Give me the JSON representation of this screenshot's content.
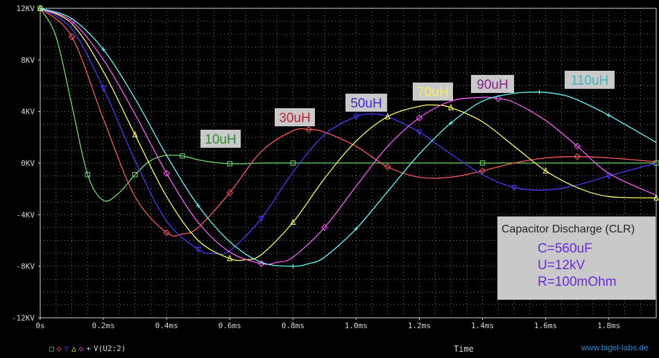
{
  "chart_data": {
    "type": "line",
    "xlabel": "Time",
    "xlim": [
      0,
      1.95
    ],
    "ylim": [
      -12,
      12
    ],
    "x_ticks": [
      "0s",
      "0.2ms",
      "0.4ms",
      "0.6ms",
      "0.8ms",
      "1.0ms",
      "1.2ms",
      "1.4ms",
      "1.6ms",
      "1.8ms"
    ],
    "y_ticks": [
      "12KV",
      "8KV",
      "4KV",
      "0KV",
      "-4KV",
      "-8KV",
      "-12KV"
    ],
    "grid": true,
    "series": [
      {
        "name": "10uH",
        "color": "#6fe06f",
        "marker": "square",
        "x": [
          0,
          0.05,
          0.1,
          0.15,
          0.2,
          0.25,
          0.3,
          0.35,
          0.4,
          0.45,
          0.5,
          0.55,
          0.6,
          0.65,
          0.7,
          0.8,
          1.0,
          1.2,
          1.4,
          1.6,
          1.8,
          1.95
        ],
        "y": [
          12,
          9.8,
          4.5,
          -0.9,
          -2.9,
          -2.3,
          -0.9,
          0.2,
          0.6,
          0.55,
          0.25,
          0.05,
          -0.05,
          -0.05,
          0,
          0,
          0,
          0,
          0,
          0,
          0,
          0
        ]
      },
      {
        "name": "30uH",
        "color": "#ff5a5a",
        "marker": "diamond",
        "x": [
          0,
          0.1,
          0.2,
          0.3,
          0.4,
          0.45,
          0.5,
          0.6,
          0.7,
          0.8,
          0.85,
          0.9,
          1.0,
          1.1,
          1.2,
          1.3,
          1.4,
          1.5,
          1.6,
          1.7,
          1.8,
          1.95
        ],
        "y": [
          12,
          9.8,
          3.4,
          -2.6,
          -5.4,
          -5.5,
          -5,
          -2.3,
          0.9,
          2.5,
          2.6,
          2.4,
          1.3,
          -0.3,
          -1.1,
          -1.1,
          -0.6,
          0,
          0.4,
          0.5,
          0.4,
          0.1
        ]
      },
      {
        "name": "50uH",
        "color": "#4a3dff",
        "marker": "triangle-down",
        "x": [
          0,
          0.1,
          0.2,
          0.3,
          0.4,
          0.5,
          0.55,
          0.6,
          0.7,
          0.8,
          0.9,
          1.0,
          1.05,
          1.1,
          1.2,
          1.3,
          1.4,
          1.5,
          1.6,
          1.7,
          1.8,
          1.95
        ],
        "y": [
          12,
          10.4,
          5.8,
          0.2,
          -4.5,
          -6.7,
          -7,
          -6.8,
          -4.3,
          -0.7,
          2.2,
          3.6,
          3.8,
          3.6,
          2.4,
          0.7,
          -0.9,
          -1.9,
          -2.1,
          -1.7,
          -1,
          0
        ]
      },
      {
        "name": "70uH",
        "color": "#ffff66",
        "marker": "triangle",
        "x": [
          0,
          0.1,
          0.2,
          0.3,
          0.4,
          0.5,
          0.6,
          0.65,
          0.7,
          0.8,
          0.9,
          1.0,
          1.1,
          1.2,
          1.25,
          1.3,
          1.4,
          1.5,
          1.6,
          1.7,
          1.8,
          1.95
        ],
        "y": [
          12,
          10.8,
          7.1,
          2.2,
          -2.6,
          -6,
          -7.4,
          -7.5,
          -7.1,
          -4.6,
          -1.2,
          1.7,
          3.6,
          4.4,
          4.5,
          4.3,
          3.2,
          1.3,
          -0.6,
          -1.9,
          -2.6,
          -2.7
        ]
      },
      {
        "name": "90uH",
        "color": "#ff5cff",
        "marker": "diamond",
        "x": [
          0,
          0.1,
          0.2,
          0.3,
          0.4,
          0.5,
          0.6,
          0.7,
          0.75,
          0.8,
          0.9,
          1.0,
          1.1,
          1.2,
          1.3,
          1.4,
          1.45,
          1.5,
          1.6,
          1.7,
          1.8,
          1.95
        ],
        "y": [
          12,
          11,
          8,
          3.8,
          -0.8,
          -4.6,
          -6.9,
          -7.8,
          -7.7,
          -7.3,
          -5,
          -1.8,
          1.3,
          3.5,
          4.8,
          5.1,
          5,
          4.7,
          3.3,
          1.3,
          -0.8,
          -2.5
        ]
      },
      {
        "name": "110uH",
        "color": "#66ffff",
        "marker": "plus",
        "x": [
          0,
          0.1,
          0.2,
          0.3,
          0.4,
          0.5,
          0.6,
          0.7,
          0.8,
          0.85,
          0.9,
          1.0,
          1.1,
          1.2,
          1.3,
          1.4,
          1.5,
          1.58,
          1.65,
          1.7,
          1.8,
          1.95
        ],
        "y": [
          12,
          11.2,
          8.8,
          5,
          0.6,
          -3.3,
          -6.1,
          -7.7,
          -8,
          -7.8,
          -7.3,
          -5.1,
          -2.2,
          0.7,
          3.1,
          4.8,
          5.4,
          5.5,
          5.3,
          4.9,
          3.7,
          1.6
        ]
      }
    ],
    "annotations": [
      "10uH",
      "30uH",
      "50uH",
      "70uH",
      "90uH",
      "110uH"
    ]
  },
  "legend_text": "V(U2:2)",
  "info": {
    "title": "Capacitor Discharge (CLR)",
    "lines": [
      "C=560uF",
      "U=12kV",
      "R=100mOhm"
    ]
  },
  "watermark": "www.bigel-labs.de",
  "colors": {
    "grid": "#808080",
    "axis": "#d8d8d8",
    "label_bg": "#c9c9c9"
  }
}
